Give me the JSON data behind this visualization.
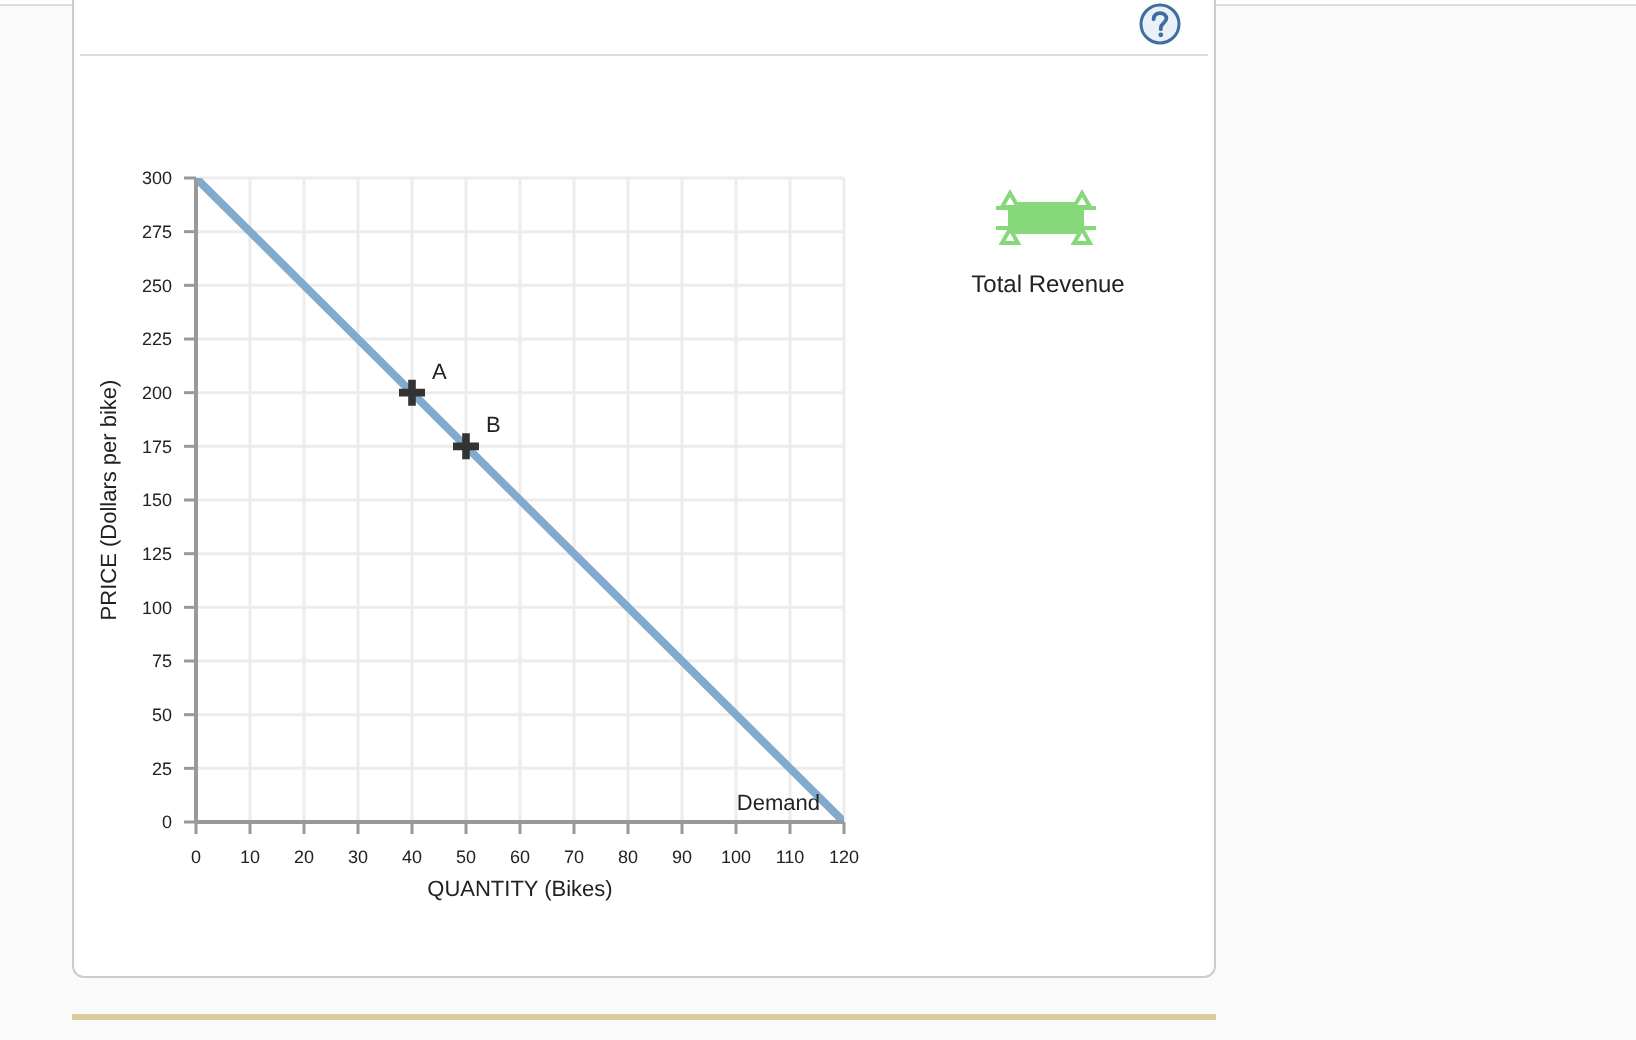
{
  "chart_data": {
    "type": "line",
    "xlabel": "QUANTITY (Bikes)",
    "ylabel": "PRICE (Dollars per bike)",
    "xlim": [
      0,
      120
    ],
    "xticks": [
      0,
      10,
      20,
      30,
      40,
      50,
      60,
      70,
      80,
      90,
      100,
      110,
      120
    ],
    "ylim": [
      0,
      300
    ],
    "yticks": [
      0,
      25,
      50,
      75,
      100,
      125,
      150,
      175,
      200,
      225,
      250,
      275,
      300
    ],
    "grid": true,
    "series": [
      {
        "name": "Demand",
        "color": "#82aacd",
        "x": [
          0,
          120
        ],
        "values": [
          300,
          0
        ],
        "marker": "none",
        "line_style": "solid"
      },
      {
        "type": "scatter",
        "color": "#333333",
        "x": [
          40,
          50
        ],
        "values": [
          200,
          175
        ],
        "marker": "cross"
      }
    ],
    "annotations": [
      {
        "text": "A",
        "x": 40,
        "y": 200
      },
      {
        "text": "B",
        "x": 50,
        "y": 175
      },
      "Total Revenue"
    ]
  }
}
